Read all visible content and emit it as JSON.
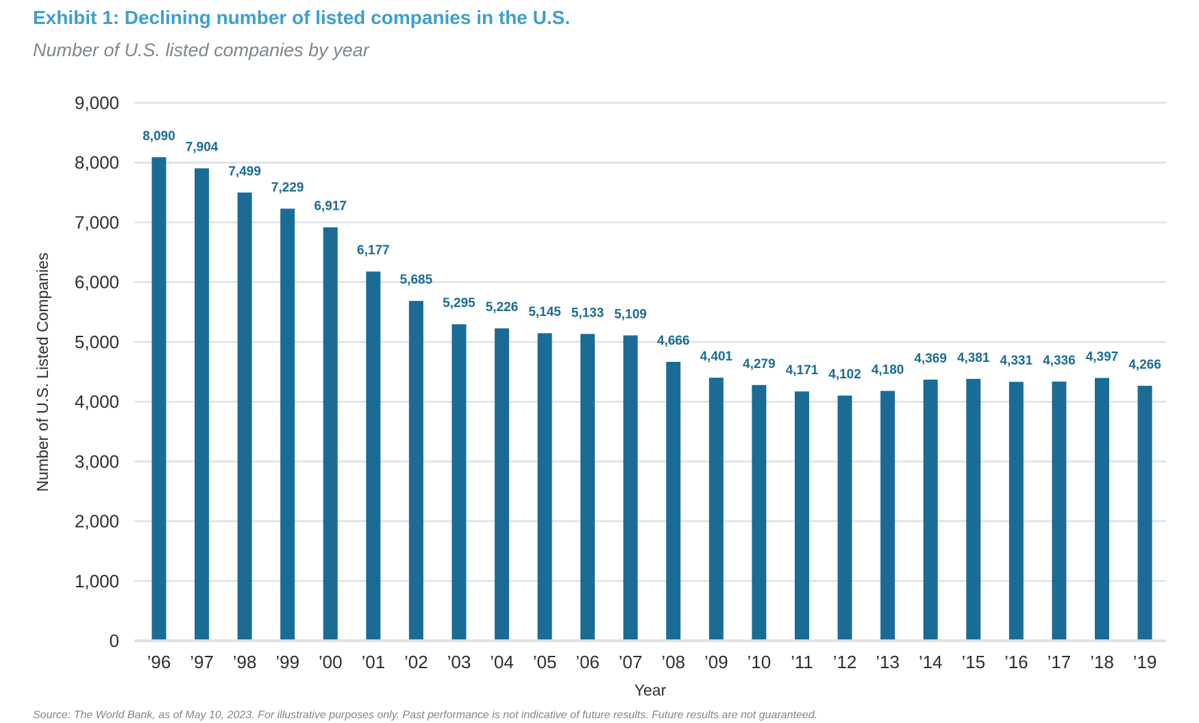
{
  "chart_data": {
    "type": "bar",
    "title": "Exhibit 1: Declining number of listed companies in the U.S.",
    "subtitle": "Number of U.S. listed companies by year",
    "xlabel": "Year",
    "ylabel": "Number of U.S. Listed Companies",
    "categories": [
      "'96",
      "'97",
      "'98",
      "'99",
      "'00",
      "'01",
      "'02",
      "'03",
      "'04",
      "'05",
      "'06",
      "'07",
      "'08",
      "'09",
      "'10",
      "'11",
      "'12",
      "'13",
      "'14",
      "'15",
      "'16",
      "'17",
      "'18",
      "'19"
    ],
    "values": [
      8090,
      7904,
      7499,
      7229,
      6917,
      6177,
      5685,
      5295,
      5226,
      5145,
      5133,
      5109,
      4666,
      4401,
      4279,
      4171,
      4102,
      4180,
      4369,
      4381,
      4331,
      4336,
      4397,
      4266
    ],
    "ylim": [
      0,
      9000
    ],
    "yticks": [
      0,
      1000,
      2000,
      3000,
      4000,
      5000,
      6000,
      7000,
      8000,
      9000
    ],
    "grid": true,
    "data_labels": true,
    "legend": "none",
    "source": "Source: The World Bank, as of May 10, 2023. For illustrative purposes only. Past performance is not indicative of future results. Future results are not guaranteed.",
    "colors": {
      "bar": "#1a6c96",
      "title": "#3d9fd0",
      "grid": "#dde0ea",
      "label": "#1a6c96"
    }
  }
}
